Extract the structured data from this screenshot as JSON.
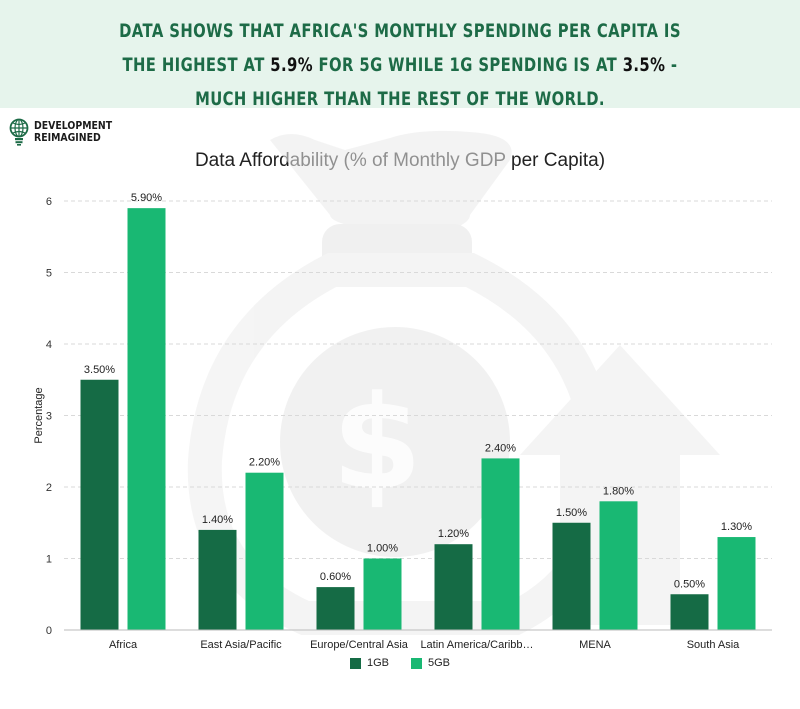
{
  "banner": {
    "part1": "Data shows that Africa's monthly spending per capita is the highest at ",
    "highlight1": "5.9%",
    "part2": " for 5G while 1G spending is at ",
    "highlight2": "3.5%",
    "part3": " - much higher than the rest of the world."
  },
  "logo": {
    "line1": "DEVELOPMENT",
    "line2": "REIMAGINED"
  },
  "colors": {
    "banner_bg": "#e6f4ec",
    "headline": "#1d6b47",
    "series_1gb": "#156b45",
    "series_5gb": "#19b873"
  },
  "chart_data": {
    "type": "bar",
    "title": "Data Affordability (% of Monthly GDP per Capita)",
    "xlabel": "",
    "ylabel": "Percentage",
    "ylim": [
      0,
      6
    ],
    "yticks": [
      0,
      1,
      2,
      3,
      4,
      5,
      6
    ],
    "grid": true,
    "legend": "bottom-center",
    "categories": [
      "Africa",
      "East Asia/Pacific",
      "Europe/Central Asia",
      "Latin America/Caribb…",
      "MENA",
      "South Asia"
    ],
    "series": [
      {
        "name": "1GB",
        "color": "#156b45",
        "values": [
          3.5,
          1.4,
          0.6,
          1.2,
          1.5,
          0.5
        ],
        "labels": [
          "3.50%",
          "1.40%",
          "0.60%",
          "1.20%",
          "1.50%",
          "0.50%"
        ]
      },
      {
        "name": "5GB",
        "color": "#19b873",
        "values": [
          5.9,
          2.2,
          1.0,
          2.4,
          1.8,
          1.3
        ],
        "labels": [
          "5.90%",
          "2.20%",
          "1.00%",
          "2.40%",
          "1.80%",
          "1.30%"
        ]
      }
    ]
  }
}
